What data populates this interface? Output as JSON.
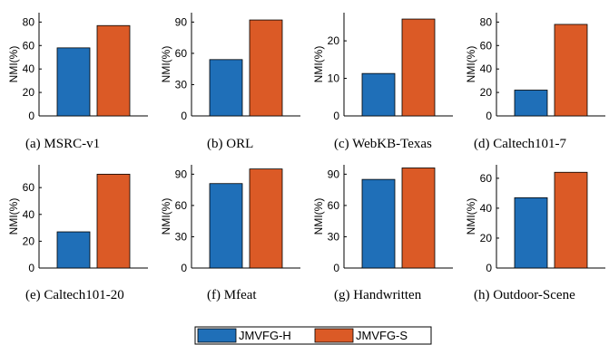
{
  "colors": {
    "jmvfg_h": "#1f6fb8",
    "jmvfg_s": "#db5a26"
  },
  "legend": [
    {
      "name": "JMVFG-H",
      "color": "#1f6fb8"
    },
    {
      "name": "JMVFG-S",
      "color": "#db5a26"
    }
  ],
  "chart_data": [
    {
      "type": "bar",
      "caption": "(a)  MSRC-v1",
      "ylabel": "NMI(%)",
      "ylim": [
        0,
        88
      ],
      "yticks": [
        0,
        20,
        40,
        60,
        80
      ],
      "categories": [
        "JMVFG-H",
        "JMVFG-S"
      ],
      "values": [
        58,
        77
      ]
    },
    {
      "type": "bar",
      "caption": "(b)  ORL",
      "ylabel": "NMI(%)",
      "ylim": [
        0,
        99
      ],
      "yticks": [
        0,
        30,
        60,
        90
      ],
      "categories": [
        "JMVFG-H",
        "JMVFG-S"
      ],
      "values": [
        54,
        92
      ]
    },
    {
      "type": "bar",
      "caption": "(c)  WebKB-Texas",
      "ylabel": "NMI(%)",
      "ylim": [
        0,
        27.5
      ],
      "yticks": [
        0,
        10,
        20
      ],
      "categories": [
        "JMVFG-H",
        "JMVFG-S"
      ],
      "values": [
        11.3,
        25.8
      ]
    },
    {
      "type": "bar",
      "caption": "(d)  Caltech101-7",
      "ylabel": "NMI(%)",
      "ylim": [
        0,
        88
      ],
      "yticks": [
        0,
        20,
        40,
        60,
        80
      ],
      "categories": [
        "JMVFG-H",
        "JMVFG-S"
      ],
      "values": [
        22,
        78
      ]
    },
    {
      "type": "bar",
      "caption": "(e)  Caltech101-20",
      "ylabel": "NMI(%)",
      "ylim": [
        0,
        77
      ],
      "yticks": [
        0,
        20,
        40,
        60
      ],
      "categories": [
        "JMVFG-H",
        "JMVFG-S"
      ],
      "values": [
        27,
        70
      ]
    },
    {
      "type": "bar",
      "caption": "(f)  Mfeat",
      "ylabel": "NMI(%)",
      "ylim": [
        0,
        99
      ],
      "yticks": [
        0,
        30,
        60,
        90
      ],
      "categories": [
        "JMVFG-H",
        "JMVFG-S"
      ],
      "values": [
        81,
        95
      ]
    },
    {
      "type": "bar",
      "caption": "(g)  Handwritten",
      "ylabel": "NMI(%)",
      "ylim": [
        0,
        99
      ],
      "yticks": [
        0,
        30,
        60,
        90
      ],
      "categories": [
        "JMVFG-H",
        "JMVFG-S"
      ],
      "values": [
        85,
        96
      ]
    },
    {
      "type": "bar",
      "caption": "(h)  Outdoor-Scene",
      "ylabel": "NMI(%)",
      "ylim": [
        0,
        69
      ],
      "yticks": [
        0,
        20,
        40,
        60
      ],
      "categories": [
        "JMVFG-H",
        "JMVFG-S"
      ],
      "values": [
        47,
        64
      ]
    }
  ]
}
